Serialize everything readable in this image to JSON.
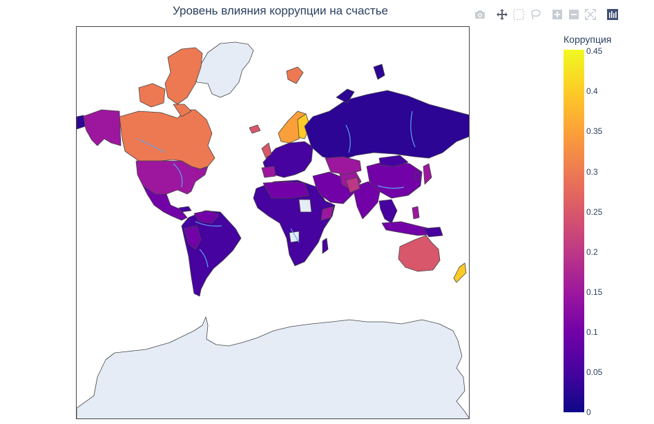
{
  "title": "Уровень влияния коррупции на счастье",
  "colorbar": {
    "title": "Коррупция",
    "ticks": [
      "0.45",
      "0.4",
      "0.35",
      "0.3",
      "0.25",
      "0.2",
      "0.15",
      "0.1",
      "0.05",
      "0"
    ],
    "colorscale": [
      "#0d0887",
      "#46039f",
      "#7201a8",
      "#9c179e",
      "#bd3786",
      "#d8576b",
      "#ed7953",
      "#fb9f3a",
      "#fdca26",
      "#f0f921"
    ],
    "range": [
      0,
      0.45
    ]
  },
  "modebar": [
    "camera-icon",
    "pan-icon",
    "box-select-icon",
    "lasso-icon",
    "zoom-in-icon",
    "zoom-out-icon",
    "autoscale-icon",
    "plotly-logo-icon"
  ],
  "colors": {
    "land_default": "#e5ecf6",
    "border": "#444444",
    "river": "#5aa3f0"
  }
}
